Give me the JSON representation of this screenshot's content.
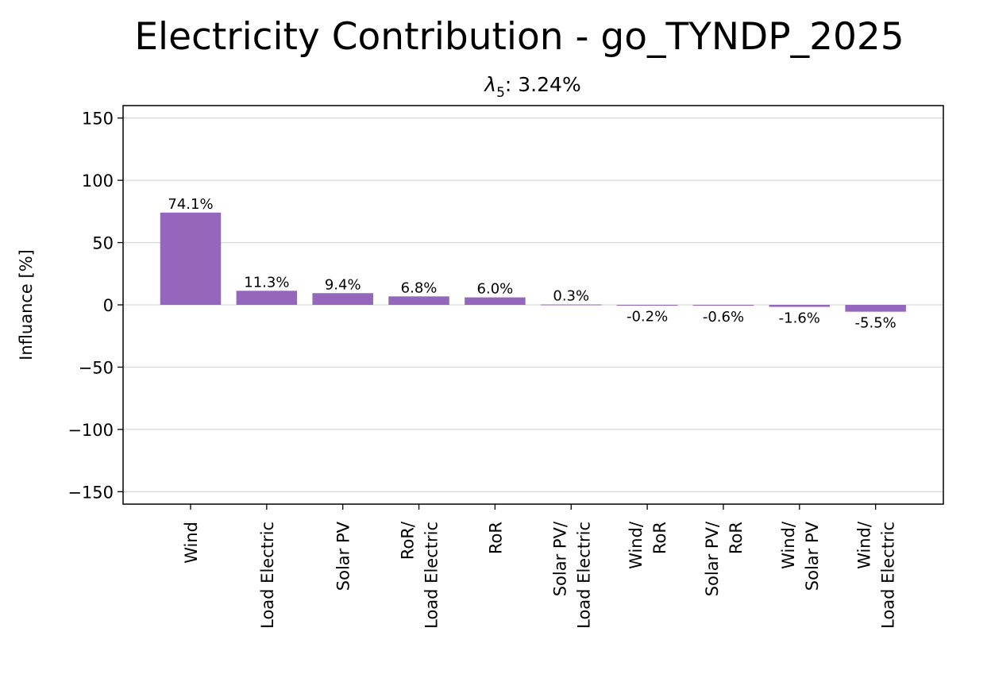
{
  "chart_data": {
    "type": "bar",
    "title": "Electricity Contribution - go_TYNDP_2025",
    "subtitle_symbol": "λ",
    "subtitle_subscript": "5",
    "subtitle_value": ": 3.24%",
    "xlabel": "",
    "ylabel": "Influance [%]",
    "ylim": [
      -160,
      160
    ],
    "yticks": [
      150,
      100,
      50,
      0,
      -50,
      -100,
      -150
    ],
    "ytick_labels": [
      "150",
      "100",
      "50",
      "0",
      "−50",
      "−100",
      "−150"
    ],
    "grid": "horizontal",
    "bar_color": "#9467bd",
    "categories": [
      [
        "Wind"
      ],
      [
        "Load Electric"
      ],
      [
        "Solar PV"
      ],
      [
        "RoR/",
        "Load Electric"
      ],
      [
        "RoR"
      ],
      [
        "Solar PV/",
        "Load Electric"
      ],
      [
        "Wind/",
        "RoR"
      ],
      [
        "Solar PV/",
        "RoR"
      ],
      [
        "Wind/",
        "Solar PV"
      ],
      [
        "Wind/",
        "Load Electric"
      ]
    ],
    "values": [
      74.1,
      11.3,
      9.4,
      6.8,
      6.0,
      0.3,
      -0.2,
      -0.6,
      -1.6,
      -5.5
    ],
    "value_labels": [
      "74.1%",
      "11.3%",
      "9.4%",
      "6.8%",
      "6.0%",
      "0.3%",
      "-0.2%",
      "-0.6%",
      "-1.6%",
      "-5.5%"
    ]
  }
}
